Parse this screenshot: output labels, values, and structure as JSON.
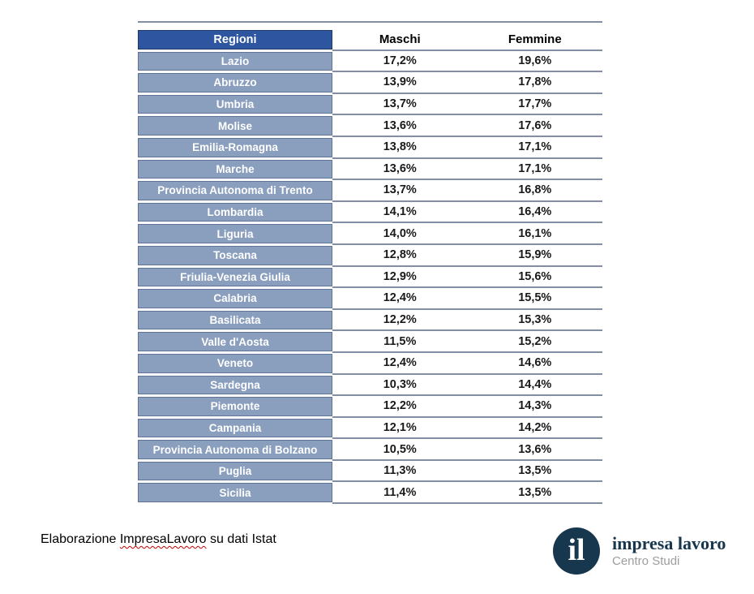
{
  "chart_data": {
    "type": "table",
    "columns": [
      "Regioni",
      "Maschi",
      "Femmine"
    ],
    "categories": [
      "Lazio",
      "Abruzzo",
      "Umbria",
      "Molise",
      "Emilia-Romagna",
      "Marche",
      "Provincia Autonoma di Trento",
      "Lombardia",
      "Liguria",
      "Toscana",
      "Friulia-Venezia Giulia",
      "Calabria",
      "Basilicata",
      "Valle d'Aosta",
      "Veneto",
      "Sardegna",
      "Piemonte",
      "Campania",
      "Provincia Autonoma di Bolzano",
      "Puglia",
      "Sicilia"
    ],
    "series": [
      {
        "name": "Maschi",
        "values": [
          17.2,
          13.9,
          13.7,
          13.6,
          13.8,
          13.6,
          13.7,
          14.1,
          14.0,
          12.8,
          12.9,
          12.4,
          12.2,
          11.5,
          12.4,
          10.3,
          12.2,
          12.1,
          10.5,
          11.3,
          11.4
        ]
      },
      {
        "name": "Femmine",
        "values": [
          19.6,
          17.8,
          17.7,
          17.6,
          17.1,
          17.1,
          16.8,
          16.4,
          16.1,
          15.9,
          15.6,
          15.5,
          15.3,
          15.2,
          14.6,
          14.4,
          14.3,
          14.2,
          13.6,
          13.5,
          13.5
        ]
      }
    ],
    "rows": [
      [
        "Lazio",
        "17,2%",
        "19,6%"
      ],
      [
        "Abruzzo",
        "13,9%",
        "17,8%"
      ],
      [
        "Umbria",
        "13,7%",
        "17,7%"
      ],
      [
        "Molise",
        "13,6%",
        "17,6%"
      ],
      [
        "Emilia-Romagna",
        "13,8%",
        "17,1%"
      ],
      [
        "Marche",
        "13,6%",
        "17,1%"
      ],
      [
        "Provincia Autonoma di Trento",
        "13,7%",
        "16,8%"
      ],
      [
        "Lombardia",
        "14,1%",
        "16,4%"
      ],
      [
        "Liguria",
        "14,0%",
        "16,1%"
      ],
      [
        "Toscana",
        "12,8%",
        "15,9%"
      ],
      [
        "Friulia-Venezia Giulia",
        "12,9%",
        "15,6%"
      ],
      [
        "Calabria",
        "12,4%",
        "15,5%"
      ],
      [
        "Basilicata",
        "12,2%",
        "15,3%"
      ],
      [
        "Valle d'Aosta",
        "11,5%",
        "15,2%"
      ],
      [
        "Veneto",
        "12,4%",
        "14,6%"
      ],
      [
        "Sardegna",
        "10,3%",
        "14,4%"
      ],
      [
        "Piemonte",
        "12,2%",
        "14,3%"
      ],
      [
        "Campania",
        "12,1%",
        "14,2%"
      ],
      [
        "Provincia Autonoma di Bolzano",
        "10,5%",
        "13,6%"
      ],
      [
        "Puglia",
        "11,3%",
        "13,5%"
      ],
      [
        "Sicilia",
        "11,4%",
        "13,5%"
      ]
    ]
  },
  "footer": {
    "text_prefix": "Elaborazione ",
    "text_misspelled": "ImpresaLavoro",
    "text_suffix": " su dati Istat"
  },
  "logo": {
    "monogram": "il",
    "name": "impresa lavoro",
    "subtitle": "Centro Studi"
  },
  "colors": {
    "header_bg": "#2e55a0",
    "header_border": "#1f3864",
    "row_bg": "#8a9ebd",
    "row_border": "#5f7398",
    "separator_line": "#828ea1",
    "logo_navy": "#16374e",
    "subtitle_gray": "#9d9d9d",
    "squiggle_red": "#c00000"
  }
}
